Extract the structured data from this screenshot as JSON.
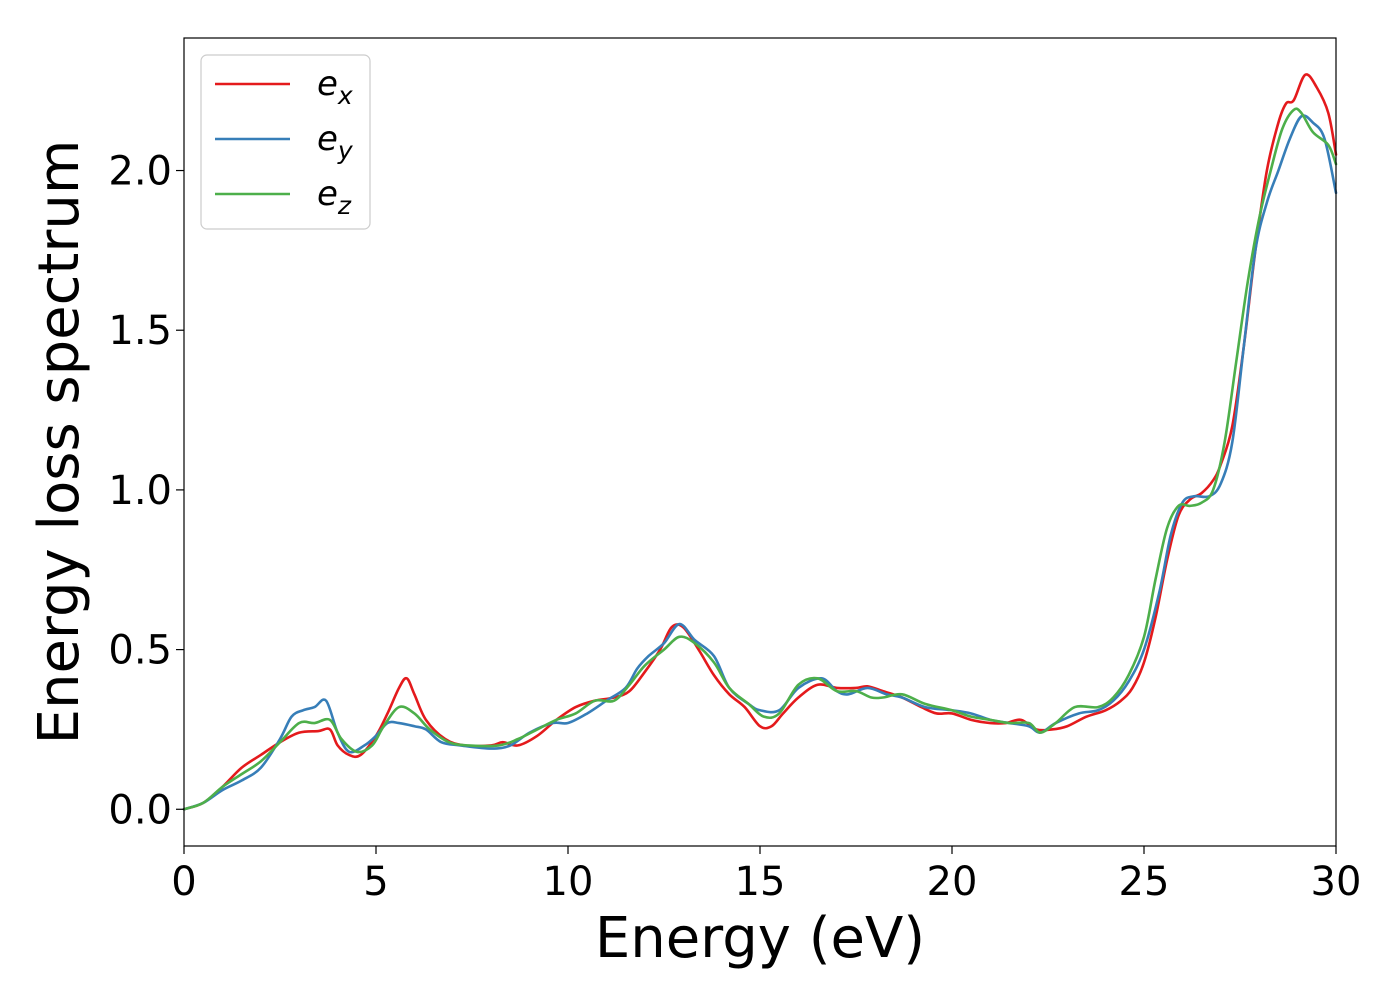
{
  "chart_data": {
    "type": "line",
    "title": "",
    "xlabel": "Energy (eV)",
    "ylabel": "Energy loss spectrum",
    "xlim": [
      0,
      30
    ],
    "ylim": [
      -0.115,
      2.415
    ],
    "xticks": [
      0,
      5,
      10,
      15,
      20,
      25,
      30
    ],
    "xtick_labels": [
      "0",
      "5",
      "10",
      "15",
      "20",
      "25",
      "30"
    ],
    "yticks": [
      0.0,
      0.5,
      1.0,
      1.5,
      2.0
    ],
    "ytick_labels": [
      "0.0",
      "0.5",
      "1.0",
      "1.5",
      "2.0"
    ],
    "grid": false,
    "legend": {
      "placement": "top-left"
    },
    "series": [
      {
        "name": "e_x",
        "label_base": "e",
        "label_sub": "x",
        "color": "#e41a1c",
        "points": [
          [
            0,
            0
          ],
          [
            0.5,
            0.02
          ],
          [
            1,
            0.07
          ],
          [
            1.5,
            0.13
          ],
          [
            2,
            0.17
          ],
          [
            2.5,
            0.21
          ],
          [
            3,
            0.24
          ],
          [
            3.5,
            0.245
          ],
          [
            3.8,
            0.25
          ],
          [
            4,
            0.2
          ],
          [
            4.3,
            0.17
          ],
          [
            4.6,
            0.17
          ],
          [
            5,
            0.23
          ],
          [
            5.3,
            0.3
          ],
          [
            5.6,
            0.38
          ],
          [
            5.8,
            0.41
          ],
          [
            6,
            0.36
          ],
          [
            6.3,
            0.28
          ],
          [
            6.8,
            0.22
          ],
          [
            7.3,
            0.2
          ],
          [
            8,
            0.2
          ],
          [
            8.3,
            0.21
          ],
          [
            8.7,
            0.2
          ],
          [
            9.2,
            0.23
          ],
          [
            9.7,
            0.28
          ],
          [
            10.2,
            0.32
          ],
          [
            10.7,
            0.34
          ],
          [
            11.2,
            0.35
          ],
          [
            11.6,
            0.37
          ],
          [
            12,
            0.43
          ],
          [
            12.4,
            0.5
          ],
          [
            12.7,
            0.57
          ],
          [
            13,
            0.57
          ],
          [
            13.4,
            0.5
          ],
          [
            13.8,
            0.42
          ],
          [
            14.2,
            0.36
          ],
          [
            14.6,
            0.32
          ],
          [
            15,
            0.26
          ],
          [
            15.3,
            0.26
          ],
          [
            15.6,
            0.3
          ],
          [
            16,
            0.35
          ],
          [
            16.5,
            0.39
          ],
          [
            17,
            0.38
          ],
          [
            17.5,
            0.38
          ],
          [
            17.8,
            0.385
          ],
          [
            18.2,
            0.37
          ],
          [
            18.7,
            0.35
          ],
          [
            19.2,
            0.32
          ],
          [
            19.6,
            0.3
          ],
          [
            20,
            0.3
          ],
          [
            20.5,
            0.28
          ],
          [
            21,
            0.27
          ],
          [
            21.4,
            0.27
          ],
          [
            21.8,
            0.28
          ],
          [
            22.2,
            0.25
          ],
          [
            22.6,
            0.25
          ],
          [
            23,
            0.26
          ],
          [
            23.5,
            0.29
          ],
          [
            24,
            0.31
          ],
          [
            24.4,
            0.34
          ],
          [
            24.7,
            0.38
          ],
          [
            25,
            0.46
          ],
          [
            25.3,
            0.6
          ],
          [
            25.6,
            0.78
          ],
          [
            25.9,
            0.92
          ],
          [
            26.2,
            0.97
          ],
          [
            26.5,
            0.99
          ],
          [
            26.8,
            1.03
          ],
          [
            27,
            1.08
          ],
          [
            27.3,
            1.2
          ],
          [
            27.6,
            1.45
          ],
          [
            27.9,
            1.75
          ],
          [
            28.2,
            2.0
          ],
          [
            28.5,
            2.15
          ],
          [
            28.7,
            2.21
          ],
          [
            28.9,
            2.22
          ],
          [
            29.2,
            2.3
          ],
          [
            29.5,
            2.26
          ],
          [
            29.8,
            2.18
          ],
          [
            30,
            2.05
          ]
        ]
      },
      {
        "name": "e_y",
        "label_base": "e",
        "label_sub": "y",
        "color": "#377eb8",
        "points": [
          [
            0,
            0
          ],
          [
            0.5,
            0.02
          ],
          [
            1,
            0.06
          ],
          [
            1.5,
            0.09
          ],
          [
            2,
            0.13
          ],
          [
            2.5,
            0.22
          ],
          [
            2.8,
            0.29
          ],
          [
            3.1,
            0.31
          ],
          [
            3.4,
            0.32
          ],
          [
            3.7,
            0.34
          ],
          [
            4,
            0.24
          ],
          [
            4.3,
            0.18
          ],
          [
            4.7,
            0.2
          ],
          [
            5,
            0.23
          ],
          [
            5.3,
            0.27
          ],
          [
            5.6,
            0.27
          ],
          [
            6,
            0.26
          ],
          [
            6.3,
            0.25
          ],
          [
            6.7,
            0.21
          ],
          [
            7.2,
            0.2
          ],
          [
            8,
            0.19
          ],
          [
            8.5,
            0.2
          ],
          [
            9,
            0.24
          ],
          [
            9.6,
            0.27
          ],
          [
            10,
            0.27
          ],
          [
            10.5,
            0.3
          ],
          [
            11,
            0.34
          ],
          [
            11.5,
            0.38
          ],
          [
            11.8,
            0.44
          ],
          [
            12.1,
            0.48
          ],
          [
            12.5,
            0.52
          ],
          [
            12.9,
            0.58
          ],
          [
            13.3,
            0.53
          ],
          [
            13.8,
            0.48
          ],
          [
            14.2,
            0.38
          ],
          [
            14.7,
            0.33
          ],
          [
            15,
            0.31
          ],
          [
            15.5,
            0.31
          ],
          [
            16,
            0.38
          ],
          [
            16.6,
            0.41
          ],
          [
            17,
            0.37
          ],
          [
            17.3,
            0.36
          ],
          [
            17.8,
            0.38
          ],
          [
            18.3,
            0.36
          ],
          [
            18.7,
            0.35
          ],
          [
            19.3,
            0.32
          ],
          [
            20,
            0.31
          ],
          [
            20.5,
            0.3
          ],
          [
            21,
            0.28
          ],
          [
            21.5,
            0.27
          ],
          [
            22,
            0.26
          ],
          [
            22.3,
            0.24
          ],
          [
            22.7,
            0.27
          ],
          [
            23.3,
            0.3
          ],
          [
            23.8,
            0.31
          ],
          [
            24.2,
            0.34
          ],
          [
            24.6,
            0.4
          ],
          [
            25,
            0.5
          ],
          [
            25.4,
            0.68
          ],
          [
            25.7,
            0.86
          ],
          [
            26,
            0.96
          ],
          [
            26.3,
            0.98
          ],
          [
            26.7,
            0.98
          ],
          [
            27,
            1.02
          ],
          [
            27.3,
            1.15
          ],
          [
            27.6,
            1.45
          ],
          [
            27.9,
            1.75
          ],
          [
            28.2,
            1.9
          ],
          [
            28.5,
            2.0
          ],
          [
            28.8,
            2.1
          ],
          [
            29.1,
            2.17
          ],
          [
            29.4,
            2.15
          ],
          [
            29.7,
            2.1
          ],
          [
            30,
            1.93
          ]
        ]
      },
      {
        "name": "e_z",
        "label_base": "e",
        "label_sub": "z",
        "color": "#4daf4a",
        "points": [
          [
            0,
            0
          ],
          [
            0.5,
            0.02
          ],
          [
            1,
            0.07
          ],
          [
            1.5,
            0.11
          ],
          [
            2,
            0.15
          ],
          [
            2.5,
            0.21
          ],
          [
            3,
            0.27
          ],
          [
            3.4,
            0.27
          ],
          [
            3.8,
            0.28
          ],
          [
            4.1,
            0.22
          ],
          [
            4.5,
            0.18
          ],
          [
            4.9,
            0.2
          ],
          [
            5.2,
            0.26
          ],
          [
            5.6,
            0.32
          ],
          [
            6,
            0.3
          ],
          [
            6.4,
            0.25
          ],
          [
            6.9,
            0.21
          ],
          [
            7.4,
            0.2
          ],
          [
            8.2,
            0.2
          ],
          [
            8.7,
            0.22
          ],
          [
            9.2,
            0.25
          ],
          [
            9.7,
            0.28
          ],
          [
            10.2,
            0.3
          ],
          [
            10.7,
            0.34
          ],
          [
            11.2,
            0.34
          ],
          [
            11.6,
            0.39
          ],
          [
            12,
            0.45
          ],
          [
            12.5,
            0.5
          ],
          [
            12.9,
            0.54
          ],
          [
            13.3,
            0.52
          ],
          [
            13.8,
            0.46
          ],
          [
            14.2,
            0.38
          ],
          [
            14.7,
            0.33
          ],
          [
            15.1,
            0.29
          ],
          [
            15.5,
            0.3
          ],
          [
            16,
            0.39
          ],
          [
            16.5,
            0.41
          ],
          [
            17,
            0.37
          ],
          [
            17.5,
            0.37
          ],
          [
            17.9,
            0.35
          ],
          [
            18.2,
            0.35
          ],
          [
            18.7,
            0.36
          ],
          [
            19.3,
            0.33
          ],
          [
            20,
            0.31
          ],
          [
            20.5,
            0.29
          ],
          [
            21,
            0.28
          ],
          [
            21.5,
            0.27
          ],
          [
            22,
            0.27
          ],
          [
            22.3,
            0.24
          ],
          [
            22.7,
            0.27
          ],
          [
            23.2,
            0.32
          ],
          [
            23.8,
            0.32
          ],
          [
            24.2,
            0.35
          ],
          [
            24.6,
            0.42
          ],
          [
            25,
            0.54
          ],
          [
            25.3,
            0.72
          ],
          [
            25.6,
            0.88
          ],
          [
            25.9,
            0.95
          ],
          [
            26.2,
            0.95
          ],
          [
            26.5,
            0.96
          ],
          [
            26.8,
            1.0
          ],
          [
            27.1,
            1.15
          ],
          [
            27.4,
            1.4
          ],
          [
            27.7,
            1.65
          ],
          [
            28,
            1.85
          ],
          [
            28.3,
            2.0
          ],
          [
            28.6,
            2.13
          ],
          [
            28.9,
            2.19
          ],
          [
            29.1,
            2.18
          ],
          [
            29.4,
            2.12
          ],
          [
            29.8,
            2.08
          ],
          [
            30,
            2.02
          ]
        ]
      }
    ]
  }
}
